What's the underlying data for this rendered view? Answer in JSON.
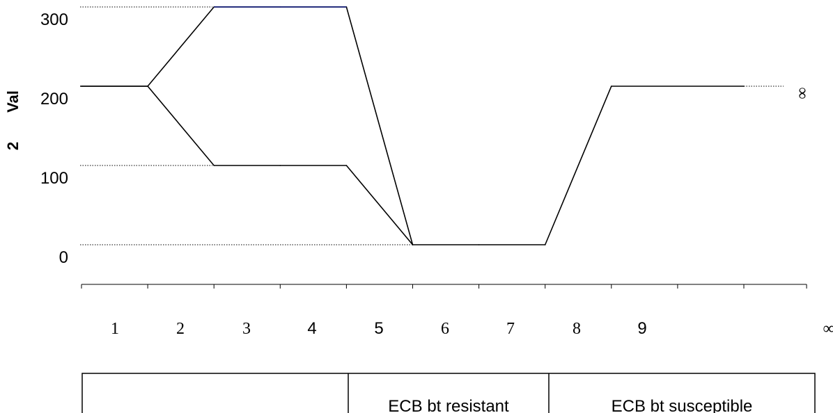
{
  "chart_data": {
    "type": "line",
    "ylabel_value": "Val",
    "ylabel_number": "2",
    "y_ticks": [
      "300",
      "200",
      "100",
      "0"
    ],
    "y_tick_values": [
      300,
      200,
      100,
      0
    ],
    "ylim": [
      0,
      300
    ],
    "x_ticks": [
      "1",
      "2",
      "3",
      "4",
      "5",
      "6",
      "7",
      "8",
      "9",
      "∞"
    ],
    "infinity_marker": "∞",
    "grid": false,
    "series": [
      {
        "points": [
          [
            1,
            200
          ],
          [
            2,
            200
          ],
          [
            3,
            300
          ],
          [
            4,
            300
          ],
          [
            5,
            300
          ],
          [
            6,
            0
          ],
          [
            7,
            0
          ],
          [
            8,
            0
          ],
          [
            9,
            200
          ],
          [
            11,
            200
          ]
        ],
        "color": "#000000",
        "highlight_color": "#1a237e"
      },
      {
        "points": [
          [
            2,
            200
          ],
          [
            3,
            100
          ],
          [
            4,
            100
          ],
          [
            5,
            100
          ],
          [
            6,
            0
          ]
        ],
        "color": "#000000"
      }
    ],
    "reference_lines": [
      300,
      200,
      100,
      0
    ],
    "legend": [
      "",
      "ECB bt resistant",
      "ECB bt susceptible"
    ]
  }
}
